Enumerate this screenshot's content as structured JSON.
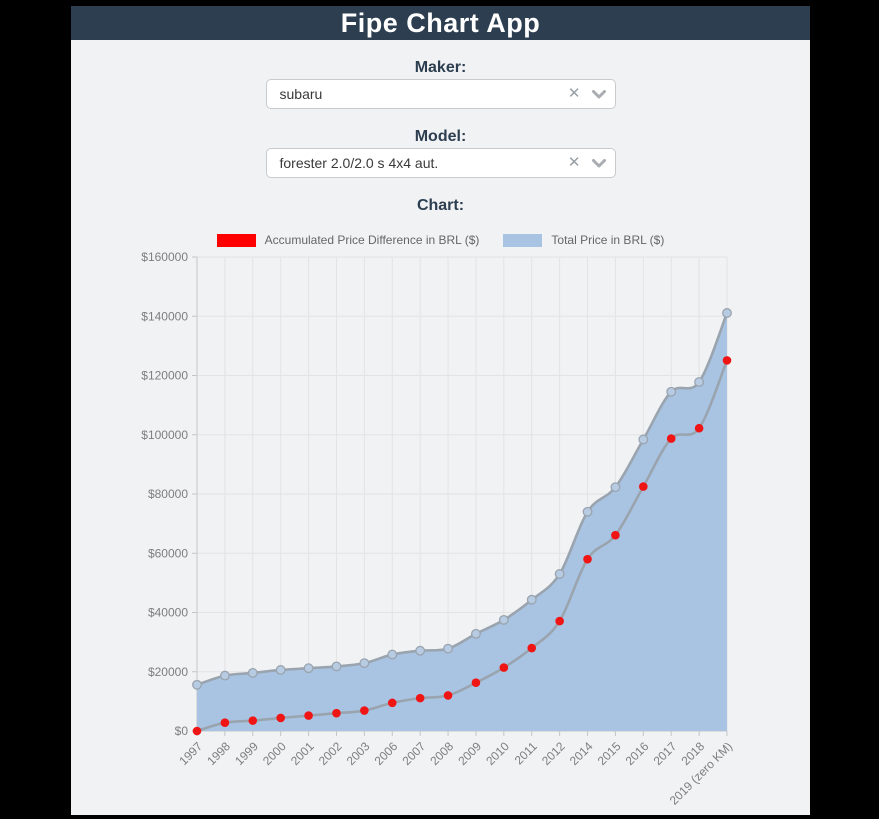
{
  "header": {
    "title": "Fipe Chart App"
  },
  "form": {
    "maker_label": "Maker:",
    "maker_value": "subaru",
    "model_label": "Model:",
    "model_value": "forester 2.0/2.0 s 4x4 aut.",
    "chart_label": "Chart:",
    "clear_icon": "✕"
  },
  "colors": {
    "header_bg": "#2c3e50",
    "page_bg": "#f1f2f4",
    "frame_bg": "#000000"
  },
  "chart_data": {
    "type": "area",
    "title": "",
    "legend_position": "top",
    "grid": true,
    "categories": [
      "1997",
      "1998",
      "1999",
      "2000",
      "2001",
      "2002",
      "2003",
      "2006",
      "2007",
      "2008",
      "2009",
      "2010",
      "2011",
      "2012",
      "2014",
      "2015",
      "2016",
      "2017",
      "2018",
      "2019 (zero KM)"
    ],
    "series": [
      {
        "name": "Accumulated Price Difference in BRL ($)",
        "color": "#ff0000",
        "point_color": "#f01515",
        "fill": false,
        "values": [
          0,
          2800,
          3500,
          4400,
          5200,
          6000,
          6900,
          9500,
          11100,
          12000,
          16300,
          21400,
          28000,
          37100,
          58000,
          66100,
          82500,
          98700,
          102200,
          125100
        ]
      },
      {
        "name": "Total Price in BRL ($)",
        "color": "#a9c4e2",
        "point_color": "#b7cbe3",
        "fill": true,
        "fill_color": "#a9c4e2",
        "values": [
          15600,
          18700,
          19600,
          20600,
          21200,
          21800,
          22900,
          25800,
          27100,
          27800,
          32800,
          37500,
          44300,
          53000,
          74000,
          82300,
          98400,
          114500,
          117800,
          141100
        ]
      }
    ],
    "line_color": "#9aa4af",
    "grid_color": "#e3e3e3",
    "axis_color": "#c2c6c9",
    "tick_color": "#7e7e7e",
    "ylabel_prefix": "$",
    "ylim": [
      0,
      160000
    ],
    "ytick_step": 20000
  }
}
